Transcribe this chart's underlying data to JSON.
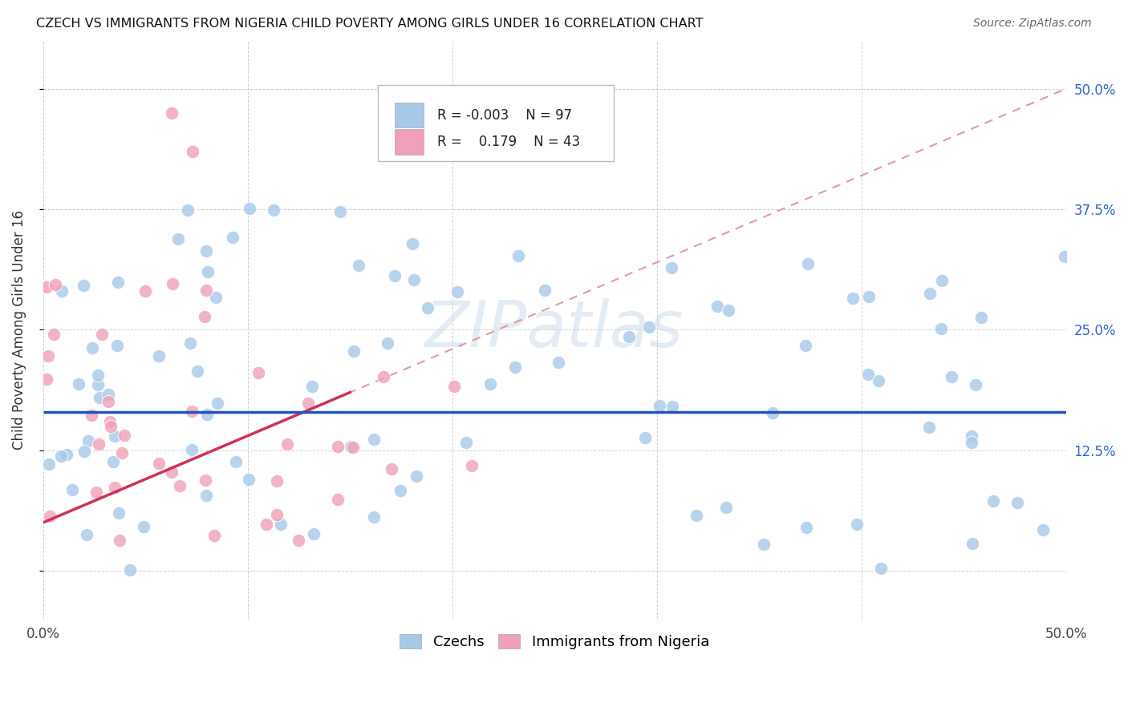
{
  "title": "CZECH VS IMMIGRANTS FROM NIGERIA CHILD POVERTY AMONG GIRLS UNDER 16 CORRELATION CHART",
  "source": "Source: ZipAtlas.com",
  "ylabel": "Child Poverty Among Girls Under 16",
  "xlim": [
    0.0,
    0.5
  ],
  "ylim": [
    -0.05,
    0.55
  ],
  "xtick_vals": [
    0.0,
    0.1,
    0.2,
    0.3,
    0.4,
    0.5
  ],
  "xticklabels": [
    "0.0%",
    "",
    "",
    "",
    "",
    "50.0%"
  ],
  "ytick_vals": [
    0.0,
    0.125,
    0.25,
    0.375,
    0.5
  ],
  "yticklabels_right": [
    "",
    "12.5%",
    "25.0%",
    "37.5%",
    "50.0%"
  ],
  "blue_R": "-0.003",
  "blue_N": "97",
  "pink_R": "0.179",
  "pink_N": "43",
  "blue_color": "#a8c8e8",
  "pink_color": "#f0a0b8",
  "blue_line_color": "#2255bb",
  "pink_line_color": "#cc3355",
  "pink_dashed_color": "#dd8899",
  "legend_label_blue": "Czechs",
  "legend_label_pink": "Immigrants from Nigeria",
  "blue_line_y": 0.165,
  "pink_line_start_y": 0.05,
  "pink_line_end_y": 0.5
}
